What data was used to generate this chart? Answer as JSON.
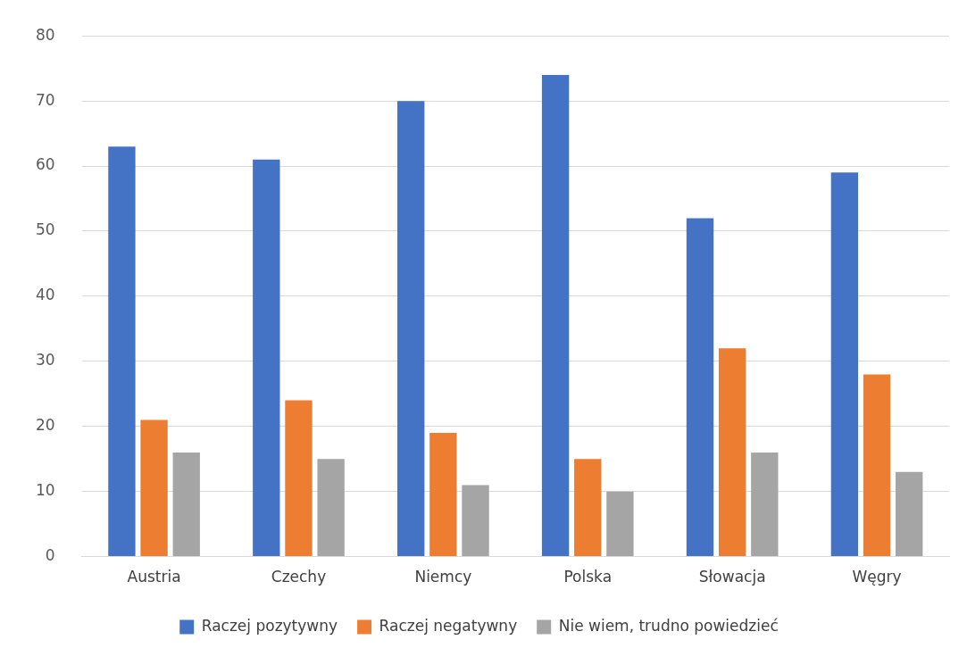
{
  "chart_data": {
    "type": "bar",
    "categories": [
      "Austria",
      "Czechy",
      "Niemcy",
      "Polska",
      "Słowacja",
      "Węgry"
    ],
    "series": [
      {
        "name": "Raczej pozytywny",
        "color": "#4472c4",
        "values": [
          63,
          61,
          70,
          74,
          52,
          59
        ]
      },
      {
        "name": "Raczej negatywny",
        "color": "#ed7d31",
        "values": [
          21,
          24,
          19,
          15,
          32,
          28
        ]
      },
      {
        "name": "Nie wiem, trudno powiedzieć",
        "color": "#a5a5a5",
        "values": [
          16,
          15,
          11,
          10,
          16,
          13
        ]
      }
    ],
    "ylim": [
      0,
      80
    ],
    "yticks": [
      0,
      10,
      20,
      30,
      40,
      50,
      60,
      70,
      80
    ],
    "grid": "y",
    "legend": "bottom"
  }
}
